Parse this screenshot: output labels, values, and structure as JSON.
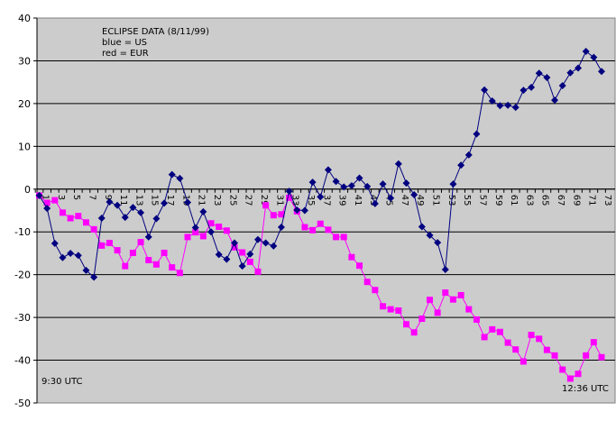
{
  "chart_data": {
    "type": "line",
    "title": "ECLIPSE DATA (8/11/99)",
    "legend": [
      "blue = US",
      "red = EUR"
    ],
    "annotations": {
      "start": "9:30 UTC",
      "end": "12:36 UTC"
    },
    "xlabel": "",
    "ylabel": "",
    "ylim": [
      -50,
      40
    ],
    "yticks": [
      40,
      30,
      20,
      10,
      0,
      -10,
      -20,
      -30,
      -40,
      -50
    ],
    "xlim": [
      1,
      73
    ],
    "xtick_labels": [
      "1",
      "3",
      "5",
      "7",
      "9",
      "11",
      "13",
      "15",
      "17",
      "19",
      "21",
      "23",
      "25",
      "27",
      "29",
      "31",
      "33",
      "35",
      "37",
      "39",
      "41",
      "43",
      "45",
      "47",
      "49",
      "51",
      "53",
      "55",
      "57",
      "59",
      "61",
      "63",
      "65",
      "67",
      "69",
      "71",
      "73"
    ],
    "grid": "horizontal",
    "plot_background": "#cccccc",
    "x": [
      1,
      2,
      3,
      4,
      5,
      6,
      7,
      8,
      9,
      10,
      11,
      12,
      13,
      14,
      15,
      16,
      17,
      18,
      19,
      20,
      21,
      22,
      23,
      24,
      25,
      26,
      27,
      28,
      29,
      30,
      31,
      32,
      33,
      34,
      35,
      36,
      37,
      38,
      39,
      40,
      41,
      42,
      43,
      44,
      45,
      46,
      47,
      48,
      49,
      50,
      51,
      52,
      53,
      54,
      55,
      56,
      57,
      58,
      59,
      60,
      61,
      62,
      63,
      64,
      65,
      66,
      67,
      68,
      69,
      70,
      71,
      72,
      73
    ],
    "series": [
      {
        "name": "US",
        "color": "#000080",
        "marker": "diamond",
        "values": [
          -1.5,
          -4.5,
          -12.7,
          -16,
          -15,
          -15.5,
          -19,
          -20.6,
          -6.8,
          -3,
          -3.8,
          -6.6,
          -4.3,
          -5.5,
          -11.2,
          -6.9,
          -3.3,
          3.4,
          2.5,
          -3.1,
          -9,
          -5.3,
          -10,
          -15.3,
          -16.4,
          -12.6,
          -18,
          -15.2,
          -11.8,
          -12.6,
          -13.3,
          -8.9,
          -0.5,
          -4.9,
          -5,
          1.6,
          -1.8,
          4.5,
          1.8,
          0.5,
          0.8,
          2.6,
          0.6,
          -3.4,
          1.2,
          -2.1,
          5.9,
          1.4,
          -1.3,
          -8.8,
          -10.8,
          -12.5,
          -18.8,
          1.2,
          5.6,
          8,
          12.9,
          23.2,
          20.6,
          19.5,
          19.6,
          19.1,
          23.1,
          23.8,
          27.1,
          26.1,
          20.8,
          24.2,
          27.2,
          28.3,
          32.2,
          30.8,
          27.5
        ]
      },
      {
        "name": "EUR",
        "color": "#ff00ff",
        "marker": "square",
        "values": [
          -1.5,
          -3.2,
          -2.6,
          -5.5,
          -6.8,
          -6.3,
          -7.8,
          -9.4,
          -13.2,
          -12.6,
          -14.3,
          -18,
          -14.9,
          -12.4,
          -16.6,
          -17.6,
          -14.9,
          -18.3,
          -19.6,
          -11.2,
          -10.1,
          -11,
          -8,
          -8.8,
          -9.7,
          -13.6,
          -14.8,
          -17,
          -19.3,
          -3.8,
          -6.1,
          -5.9,
          -2,
          -5.2,
          -8.9,
          -9.6,
          -8.1,
          -9.5,
          -11.2,
          -11.2,
          -15.9,
          -17.9,
          -21.7,
          -23.6,
          -27.4,
          -28.1,
          -28.4,
          -31.6,
          -33.5,
          -30.3,
          -25.9,
          -28.9,
          -24.2,
          -25.8,
          -24.8,
          -28.1,
          -30.5,
          -34.6,
          -32.8,
          -33.4,
          -35.9,
          -37.5,
          -40.3,
          -34.1,
          -35,
          -37.6,
          -38.9,
          -42.2,
          -44.3,
          -43.2,
          -38.9,
          -35.8,
          -39.3
        ]
      }
    ]
  }
}
